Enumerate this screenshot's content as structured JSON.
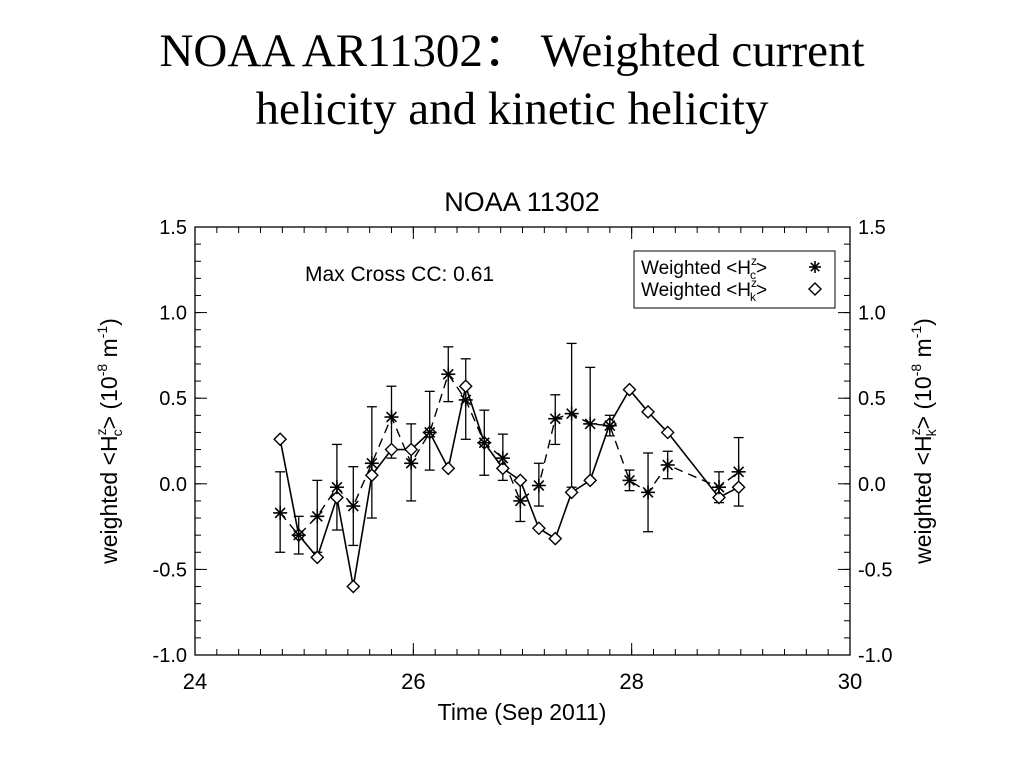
{
  "slide": {
    "title_line1": "NOAA AR11302：  Weighted current",
    "title_line2": "helicity and kinetic helicity"
  },
  "chart_data": {
    "type": "line",
    "title": "NOAA 11302",
    "annotation": "Max Cross CC: 0.61",
    "xlabel": "Time (Sep 2011)",
    "ylabel_left": {
      "prefix": "weighted <H",
      "sup": "z",
      "sub": "c",
      "suffix": "> (10",
      "exp": "-8",
      "unit": " m",
      "unit_exp": "-1",
      "close": ")"
    },
    "ylabel_right": {
      "prefix": "weighted <H",
      "sup": "z",
      "sub": "k",
      "suffix": "> (10",
      "exp": "-8",
      "unit": " m",
      "unit_exp": "-1",
      "close": ")"
    },
    "xlim": [
      24,
      30
    ],
    "ylim": [
      -1.0,
      1.5
    ],
    "xticks": [
      24,
      26,
      28,
      30
    ],
    "yticks": [
      -1.0,
      -0.5,
      0.0,
      0.5,
      1.0,
      1.5
    ],
    "xtick_labels": [
      "24",
      "26",
      "28",
      "30"
    ],
    "ytick_labels": [
      "-1.0",
      "-0.5",
      "0.0",
      "0.5",
      "1.0",
      "1.5"
    ],
    "legend_position": "top-right",
    "series": [
      {
        "name_prefix": "Weighted <H",
        "name_sup": "z",
        "name_sub": "c",
        "name_suffix": "> ",
        "marker": "asterisk",
        "line": "dashed",
        "points": [
          {
            "x": 24.78,
            "y": -0.17,
            "lo": -0.4,
            "hi": 0.07
          },
          {
            "x": 24.95,
            "y": -0.3,
            "lo": -0.41,
            "hi": -0.19
          },
          {
            "x": 25.12,
            "y": -0.19,
            "lo": -0.4,
            "hi": 0.02
          },
          {
            "x": 25.3,
            "y": -0.02,
            "lo": -0.27,
            "hi": 0.23
          },
          {
            "x": 25.45,
            "y": -0.13,
            "lo": -0.36,
            "hi": 0.1
          },
          {
            "x": 25.62,
            "y": 0.12,
            "lo": -0.2,
            "hi": 0.45
          },
          {
            "x": 25.8,
            "y": 0.39,
            "lo": 0.15,
            "hi": 0.57
          },
          {
            "x": 25.98,
            "y": 0.12,
            "lo": -0.1,
            "hi": 0.35
          },
          {
            "x": 26.15,
            "y": 0.3,
            "lo": 0.08,
            "hi": 0.54
          },
          {
            "x": 26.32,
            "y": 0.64,
            "lo": 0.48,
            "hi": 0.8
          },
          {
            "x": 26.48,
            "y": 0.49,
            "lo": 0.26,
            "hi": 0.73
          },
          {
            "x": 26.65,
            "y": 0.24,
            "lo": 0.05,
            "hi": 0.43
          },
          {
            "x": 26.82,
            "y": 0.15,
            "lo": 0.02,
            "hi": 0.29
          },
          {
            "x": 26.98,
            "y": -0.1,
            "lo": -0.22,
            "hi": 0.02
          },
          {
            "x": 27.15,
            "y": -0.01,
            "lo": -0.13,
            "hi": 0.12
          },
          {
            "x": 27.3,
            "y": 0.38,
            "lo": 0.23,
            "hi": 0.52
          },
          {
            "x": 27.45,
            "y": 0.41,
            "lo": -0.02,
            "hi": 0.82
          },
          {
            "x": 27.62,
            "y": 0.35,
            "lo": 0.02,
            "hi": 0.68
          },
          {
            "x": 27.8,
            "y": 0.34,
            "lo": 0.28,
            "hi": 0.4
          },
          {
            "x": 27.98,
            "y": 0.02,
            "lo": -0.04,
            "hi": 0.08
          },
          {
            "x": 28.15,
            "y": -0.05,
            "lo": -0.28,
            "hi": 0.18
          },
          {
            "x": 28.33,
            "y": 0.11,
            "lo": 0.03,
            "hi": 0.19
          },
          {
            "x": 28.8,
            "y": -0.02,
            "lo": -0.11,
            "hi": 0.07
          },
          {
            "x": 28.98,
            "y": 0.07,
            "lo": -0.13,
            "hi": 0.27
          }
        ]
      },
      {
        "name_prefix": "Weighted <H",
        "name_sup": "z",
        "name_sub": "k",
        "name_suffix": "> ",
        "marker": "diamond",
        "line": "solid",
        "points": [
          {
            "x": 24.78,
            "y": 0.26
          },
          {
            "x": 24.95,
            "y": -0.3
          },
          {
            "x": 25.12,
            "y": -0.43
          },
          {
            "x": 25.3,
            "y": -0.08
          },
          {
            "x": 25.45,
            "y": -0.6
          },
          {
            "x": 25.62,
            "y": 0.05
          },
          {
            "x": 25.8,
            "y": 0.2
          },
          {
            "x": 25.98,
            "y": 0.2
          },
          {
            "x": 26.15,
            "y": 0.3
          },
          {
            "x": 26.32,
            "y": 0.09
          },
          {
            "x": 26.48,
            "y": 0.57
          },
          {
            "x": 26.65,
            "y": 0.24
          },
          {
            "x": 26.82,
            "y": 0.09
          },
          {
            "x": 26.98,
            "y": 0.02
          },
          {
            "x": 27.15,
            "y": -0.26
          },
          {
            "x": 27.3,
            "y": -0.32
          },
          {
            "x": 27.45,
            "y": -0.05
          },
          {
            "x": 27.62,
            "y": 0.02
          },
          {
            "x": 27.8,
            "y": 0.35
          },
          {
            "x": 27.98,
            "y": 0.55
          },
          {
            "x": 28.15,
            "y": 0.42
          },
          {
            "x": 28.33,
            "y": 0.3
          },
          {
            "x": 28.8,
            "y": -0.08
          },
          {
            "x": 28.98,
            "y": -0.02
          }
        ]
      }
    ]
  }
}
